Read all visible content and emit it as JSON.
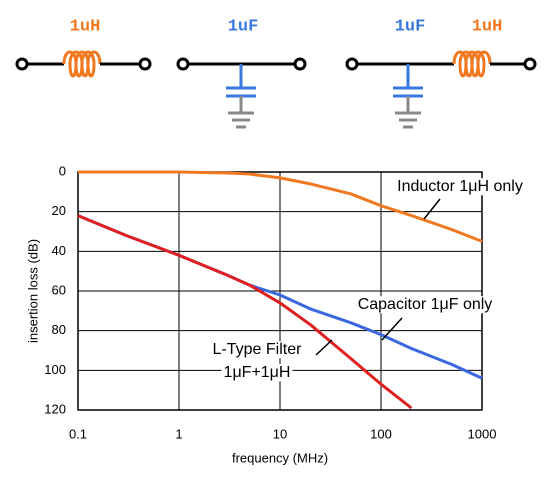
{
  "chart_data": {
    "type": "line",
    "schematic_labels": [
      {
        "text": "1uH",
        "color": "#f07820"
      },
      {
        "text": "1uF",
        "color": "#3a78e0"
      },
      {
        "text": "1uF",
        "color": "#3a78e0"
      },
      {
        "text": "1uH",
        "color": "#f07820"
      }
    ],
    "x_label": "frequency (MHz)",
    "y_label": "insertion loss (dB)",
    "x": [
      0.1,
      0.3,
      1,
      3,
      5,
      10,
      20,
      50,
      100,
      200,
      500,
      1000
    ],
    "series": [
      {
        "name": "Inductor 1μH only",
        "color": "#f07820",
        "values": [
          0,
          0,
          0,
          0.5,
          1,
          3,
          6,
          11,
          17,
          22,
          29,
          35
        ]
      },
      {
        "name": "Capacitor 1μF only",
        "color": "#3a68e0",
        "values": [
          22,
          32,
          42,
          52,
          57,
          62,
          69,
          76,
          82,
          89,
          97,
          104
        ]
      },
      {
        "name": "L-Type Filter 1μF+1μH",
        "color": "#e02020",
        "values": [
          22,
          32,
          42,
          52,
          57,
          66,
          77,
          94,
          107,
          119,
          null,
          null
        ]
      }
    ],
    "annotations": [
      "Inductor 1μH only",
      "Capacitor 1μF only",
      "L-Type Filter",
      "1μF+1μH"
    ],
    "x_log": true,
    "y_reversed": true,
    "grid": true,
    "xlim": [
      0.1,
      1000
    ],
    "xticks": [
      0.1,
      1,
      10,
      100,
      1000
    ],
    "ylim": [
      0,
      120
    ],
    "yticks": [
      0,
      20,
      40,
      60,
      80,
      100,
      120
    ]
  }
}
